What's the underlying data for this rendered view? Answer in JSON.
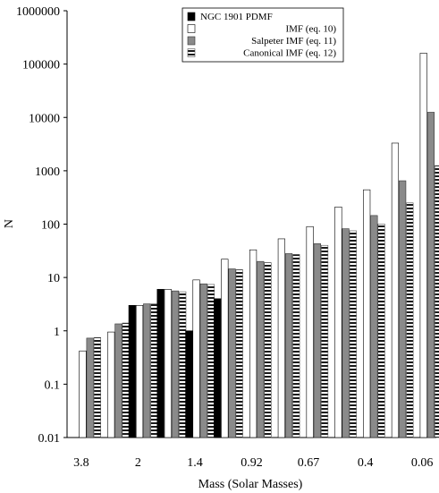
{
  "chart_data": {
    "type": "bar",
    "title": "",
    "xlabel": "Mass (Solar Masses)",
    "ylabel": "N",
    "yscale": "log",
    "ylim": [
      0.01,
      1000000
    ],
    "y_ticks": [
      "0.01",
      "0.1",
      "1",
      "10",
      "100",
      "1000",
      "10000",
      "100000",
      "1000000"
    ],
    "categories": [
      "3.8",
      "",
      "2",
      "",
      "1.4",
      "",
      "0.92",
      "",
      "0.67",
      "",
      "0.4",
      "",
      "0.06"
    ],
    "legend_position": "top-right",
    "series": [
      {
        "name": "NGC 1901 PDMF",
        "style": "solid-black",
        "values": [
          null,
          null,
          3,
          6,
          1,
          4,
          null,
          null,
          null,
          null,
          null,
          null,
          null
        ]
      },
      {
        "name": "IMF (eq. 10)",
        "style": "white",
        "values": [
          0.42,
          0.95,
          3,
          6,
          9,
          22,
          33,
          53,
          90,
          210,
          440,
          3300,
          160000
        ]
      },
      {
        "name": "Salpeter IMF (eq. 11)",
        "style": "gray",
        "values": [
          0.73,
          1.35,
          3.2,
          5.6,
          7.6,
          14.5,
          20,
          28,
          43,
          82,
          145,
          650,
          12500
        ]
      },
      {
        "name": "Canonical IMF (eq. 12)",
        "style": "striped",
        "values": [
          0.75,
          1.4,
          3.2,
          5.4,
          7.4,
          14,
          19,
          27,
          40,
          75,
          100,
          250,
          1250
        ]
      }
    ]
  }
}
